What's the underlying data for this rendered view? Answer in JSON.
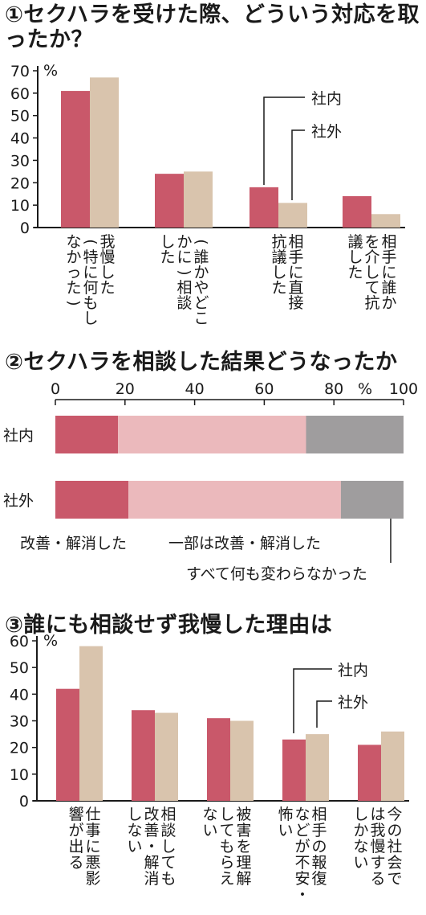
{
  "colors": {
    "inside": "#c9586a",
    "outside": "#d9c4ad",
    "improved": "#c9586a",
    "partial": "#ebb9bc",
    "unchanged": "#9f9d9e",
    "axis": "#1a1a1a"
  },
  "chart_data": [
    {
      "type": "bar",
      "title": "①セクハラを受けた際、どういう対応を取ったか？",
      "ylabel": "%",
      "ylim": [
        0,
        70
      ],
      "yticks": [
        "0",
        "10",
        "20",
        "30",
        "40",
        "50",
        "60",
        "70"
      ],
      "categories": [
        [
          "我慢した",
          "(特に何もし",
          "なかった)"
        ],
        [
          "(誰かやどこ",
          "かに)相談",
          "した"
        ],
        [
          "相手に直接",
          "抗議した"
        ],
        [
          "相手に誰か",
          "を介して抗",
          "議した"
        ]
      ],
      "series": [
        {
          "name": "社内",
          "values": [
            61,
            24,
            18,
            14
          ]
        },
        {
          "name": "社外",
          "values": [
            67,
            25,
            11,
            6
          ]
        }
      ]
    },
    {
      "type": "bar",
      "orientation": "horizontal-stacked",
      "title": "②セクハラを相談した結果どうなったか",
      "xlabel": "%",
      "xlim": [
        0,
        100
      ],
      "xticks": [
        "0",
        "20",
        "40",
        "60",
        "80",
        "100"
      ],
      "categories": [
        "社内",
        "社外"
      ],
      "series": [
        {
          "name": "改善・解消した",
          "values": [
            18,
            21
          ]
        },
        {
          "name": "一部は改善・解消した",
          "values": [
            54,
            61
          ]
        },
        {
          "name": "すべて何も変わらなかった",
          "values": [
            28,
            18
          ]
        }
      ]
    },
    {
      "type": "bar",
      "title": "③誰にも相談せず我慢した理由は",
      "ylabel": "%",
      "ylim": [
        0,
        60
      ],
      "yticks": [
        "0",
        "10",
        "20",
        "30",
        "40",
        "50",
        "60"
      ],
      "categories": [
        [
          "仕事に悪影",
          "響が出る"
        ],
        [
          "相談しても",
          "改善・解消",
          "しない"
        ],
        [
          "被害を理解",
          "してもらえ",
          "ない"
        ],
        [
          "相手の報復",
          "などが不安・",
          "怖い"
        ],
        [
          "今の社会で",
          "は我慢する",
          "しかない"
        ]
      ],
      "series": [
        {
          "name": "社内",
          "values": [
            42,
            34,
            31,
            23,
            21
          ]
        },
        {
          "name": "社外",
          "values": [
            58,
            33,
            30,
            25,
            26
          ]
        }
      ]
    }
  ]
}
